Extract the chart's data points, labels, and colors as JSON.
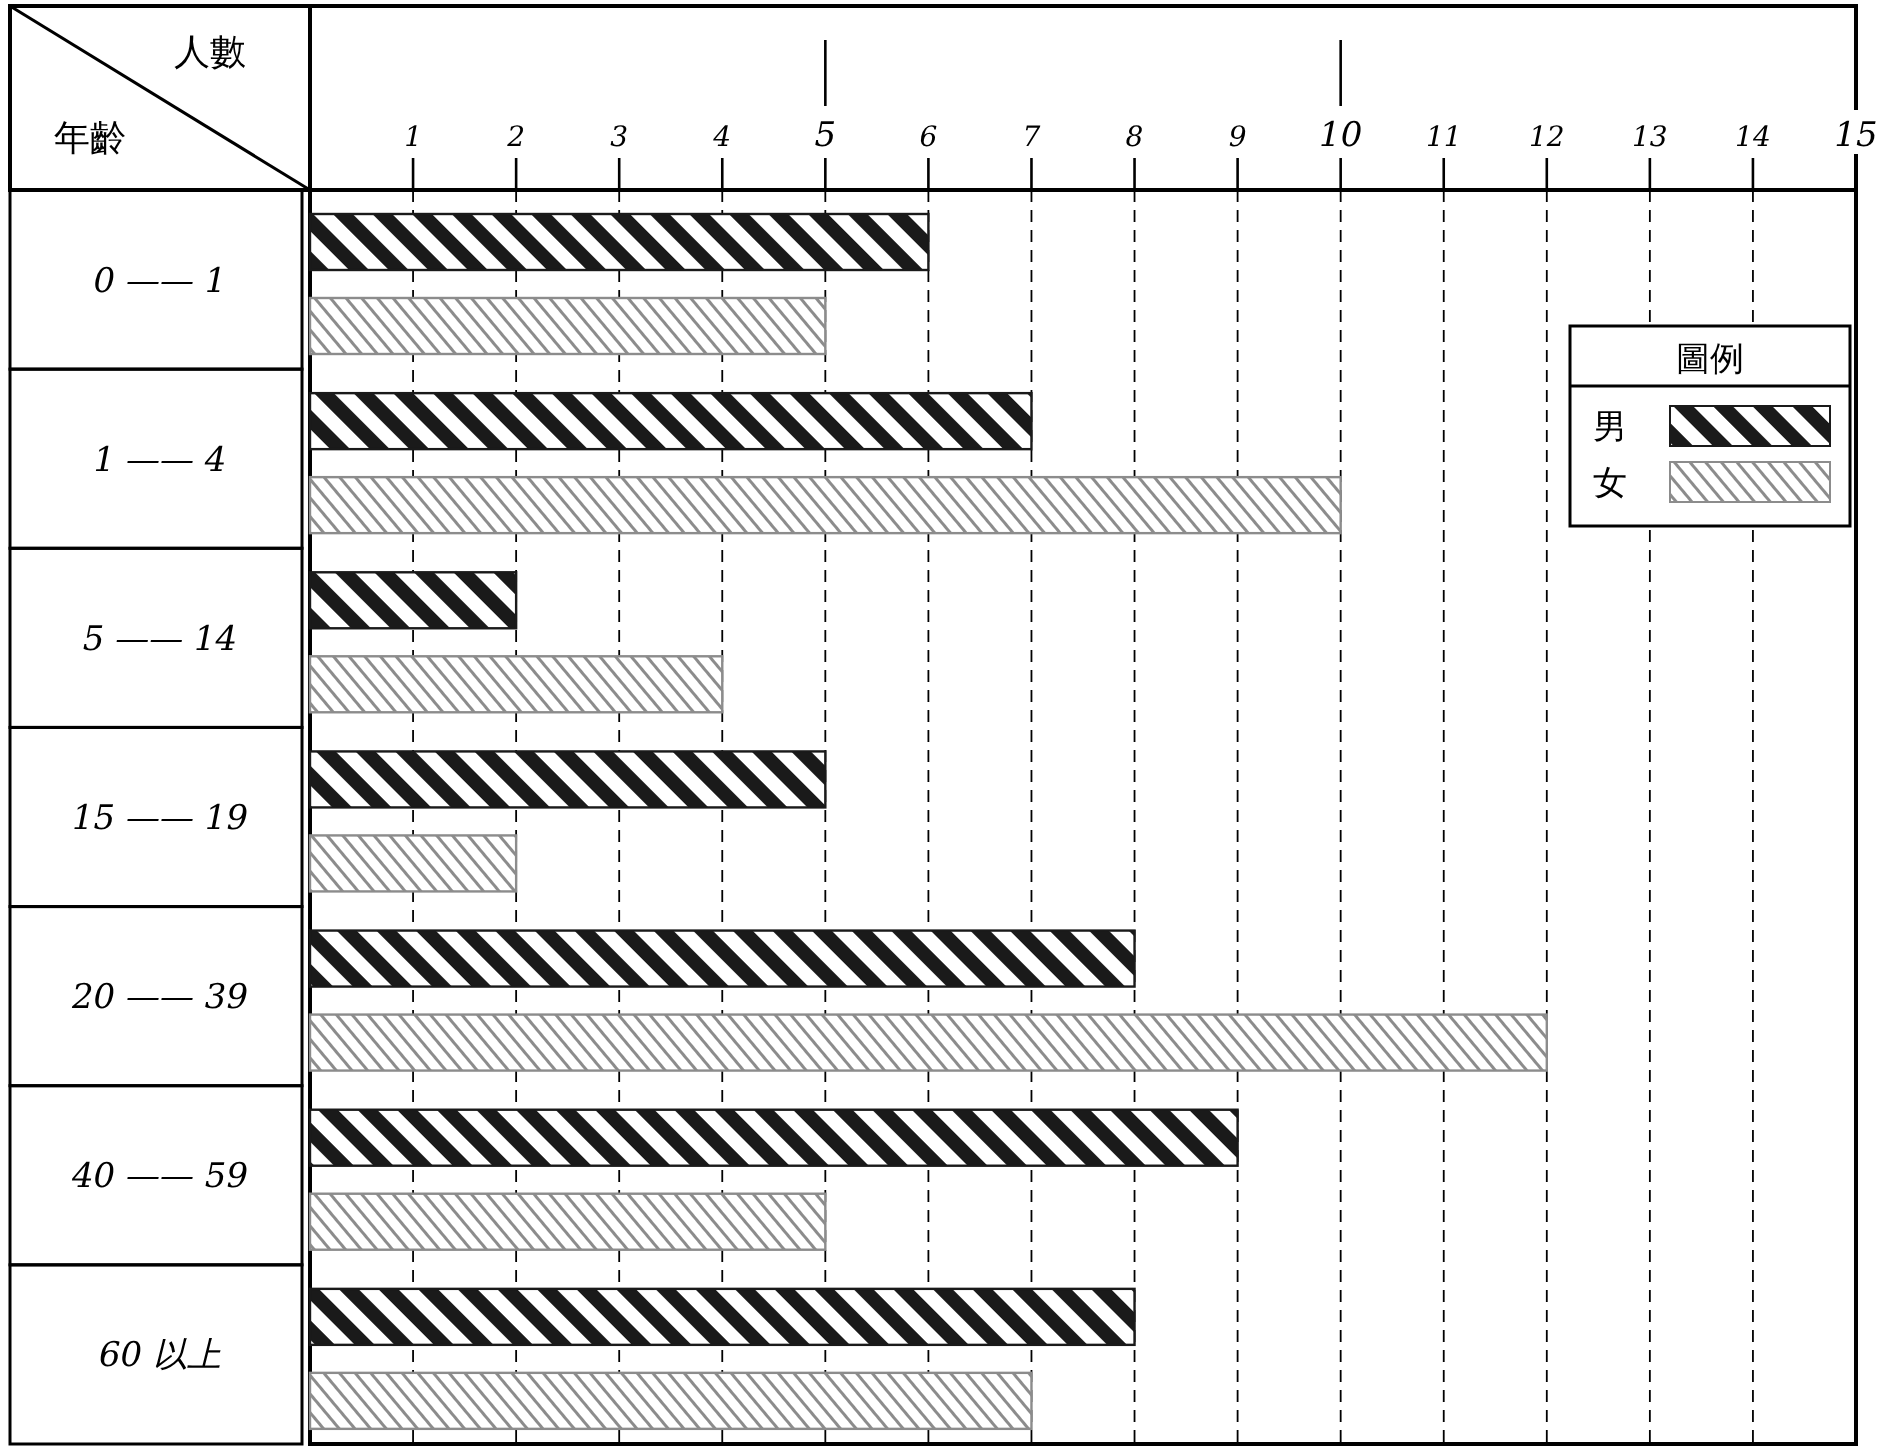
{
  "chart_data": {
    "type": "bar",
    "orientation": "horizontal",
    "xlabel": "人數",
    "ylabel": "年齡",
    "legend_title": "圖例",
    "categories": [
      "0 —— 1",
      "1 —— 4",
      "5 —— 14",
      "15 —— 19",
      "20 —— 39",
      "40 —— 59",
      "60 以上"
    ],
    "series": [
      {
        "name": "男",
        "color": "#1a1a1a",
        "values": [
          6,
          7,
          2,
          5,
          8,
          9,
          8
        ]
      },
      {
        "name": "女",
        "color": "#8c8c8c",
        "values": [
          5,
          10,
          4,
          2,
          12,
          5,
          7
        ]
      }
    ],
    "xlim": [
      0,
      15
    ],
    "xticks": [
      1,
      2,
      3,
      4,
      5,
      6,
      7,
      8,
      9,
      10,
      11,
      12,
      13,
      14,
      15
    ],
    "grid": "x",
    "legend": "top right"
  }
}
